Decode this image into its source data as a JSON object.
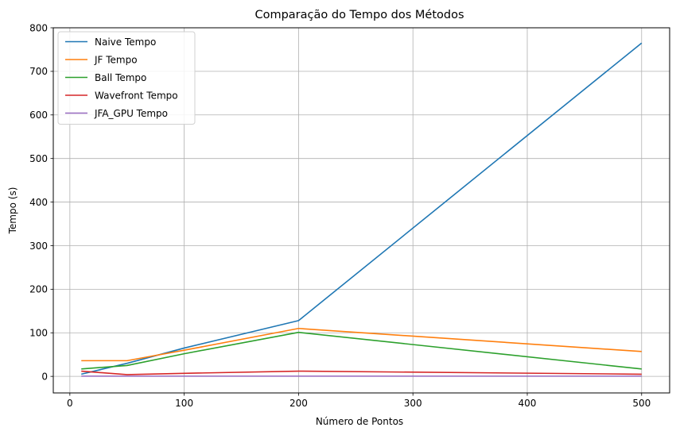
{
  "chart_data": {
    "type": "line",
    "title": "Comparação do Tempo dos Métodos",
    "xlabel": "Número de Pontos",
    "ylabel": "Tempo (s)",
    "x": [
      10,
      50,
      100,
      200,
      500
    ],
    "xlim": [
      -14.5,
      524.5
    ],
    "ylim": [
      -38,
      800
    ],
    "xticks": [
      0,
      100,
      200,
      300,
      400,
      500
    ],
    "yticks": [
      0,
      100,
      200,
      300,
      400,
      500,
      600,
      700,
      800
    ],
    "grid": true,
    "legend_position": "top-left",
    "series": [
      {
        "name": "Naive Tempo",
        "color": "#1f77b4",
        "values": [
          5,
          30,
          65,
          128,
          765
        ]
      },
      {
        "name": "JF Tempo",
        "color": "#ff7f0e",
        "values": [
          36,
          36,
          60,
          110,
          57
        ]
      },
      {
        "name": "Ball Tempo",
        "color": "#2ca02c",
        "values": [
          17,
          25,
          52,
          101,
          17
        ]
      },
      {
        "name": "Wavefront Tempo",
        "color": "#d62728",
        "values": [
          12,
          4,
          7,
          12,
          5
        ]
      },
      {
        "name": "JFA_GPU Tempo",
        "color": "#9467bd",
        "values": [
          0.5,
          0.5,
          0.5,
          0.5,
          0.5
        ]
      }
    ]
  }
}
